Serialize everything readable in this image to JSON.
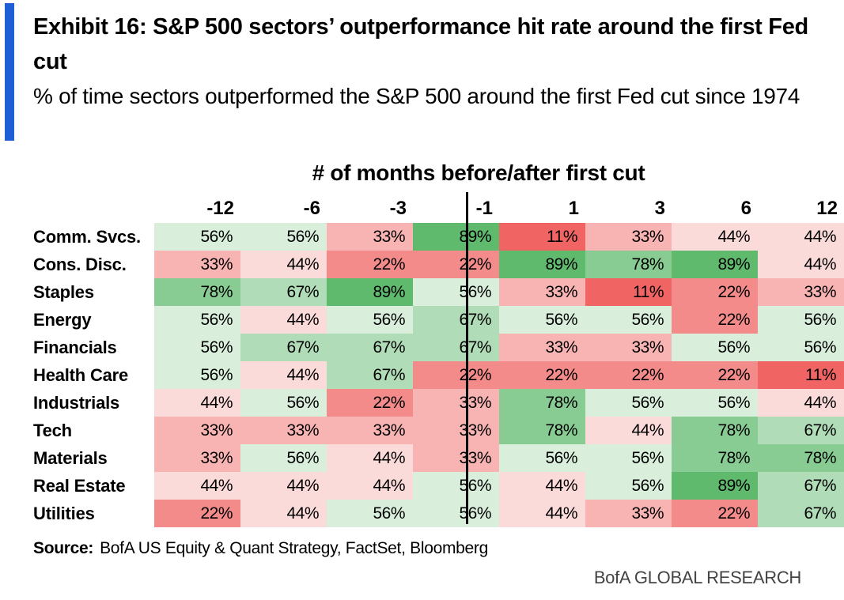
{
  "title": "Exhibit 16: S&P 500 sectors’ outperformance hit rate around the first Fed cut",
  "subtitle": "% of time sectors outperformed the S&P 500 around the first Fed cut since 1974",
  "column_group_label": "# of months before/after first cut",
  "source_label": "Source:",
  "source_text": "BofA US Equity & Quant Strategy, FactSet, Bloomberg",
  "brand": "BofA GLOBAL RESEARCH",
  "colors": {
    "accent": "#1f5fd6",
    "high": "#5fba6e",
    "mid": "#ffffff",
    "low": "#f06464"
  },
  "chart_data": {
    "type": "heatmap",
    "columns": [
      "-12",
      "-6",
      "-3",
      "-1",
      "1",
      "3",
      "6",
      "12"
    ],
    "rows": [
      "Comm. Svcs.",
      "Cons. Disc.",
      "Staples",
      "Energy",
      "Financials",
      "Health Care",
      "Industrials",
      "Tech",
      "Materials",
      "Real Estate",
      "Utilities"
    ],
    "values": [
      [
        56,
        56,
        33,
        89,
        11,
        33,
        44,
        44
      ],
      [
        33,
        44,
        22,
        22,
        89,
        78,
        89,
        44
      ],
      [
        78,
        67,
        89,
        56,
        33,
        11,
        22,
        33
      ],
      [
        56,
        44,
        56,
        67,
        56,
        56,
        22,
        56
      ],
      [
        56,
        67,
        67,
        67,
        33,
        33,
        56,
        56
      ],
      [
        56,
        44,
        67,
        22,
        22,
        22,
        22,
        11
      ],
      [
        44,
        56,
        22,
        33,
        78,
        56,
        56,
        44
      ],
      [
        33,
        33,
        33,
        33,
        78,
        44,
        78,
        67
      ],
      [
        33,
        56,
        44,
        33,
        56,
        56,
        78,
        78
      ],
      [
        44,
        44,
        44,
        56,
        44,
        56,
        89,
        67
      ],
      [
        22,
        44,
        56,
        56,
        44,
        33,
        22,
        67
      ]
    ],
    "value_suffix": "%",
    "divider_between": [
      "-1",
      "1"
    ]
  }
}
